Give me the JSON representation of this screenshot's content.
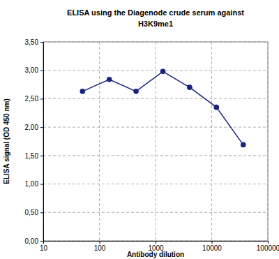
{
  "chart_data": {
    "type": "line",
    "title": "ELISA using the Diagenode crude serum against H3K9me1",
    "x_label": "Antibody dilution",
    "y_label": "ELISA signal (OD 450 nm)",
    "x": [
      50,
      150,
      450,
      1350,
      4050,
      12150,
      36450
    ],
    "values": [
      2.63,
      2.84,
      2.63,
      2.98,
      2.7,
      2.35,
      1.69
    ],
    "color": "#1a237e",
    "marker": "circle",
    "line_style": "solid",
    "log": "x",
    "grid": true,
    "xlim": [
      10,
      100000
    ],
    "xticks": [
      10,
      100,
      1000,
      10000,
      100000
    ],
    "ylim": [
      0,
      3.5
    ],
    "yticks": [
      {
        "value": 0,
        "label": "0,00"
      },
      {
        "value": 0.5,
        "label": "0,50"
      },
      {
        "value": 1,
        "label": "1,00"
      },
      {
        "value": 1.5,
        "label": "1,50"
      },
      {
        "value": 2,
        "label": "2,00"
      },
      {
        "value": 2.5,
        "label": "2,50"
      },
      {
        "value": 3,
        "label": "3,00"
      },
      {
        "value": 3.5,
        "label": "3,50"
      }
    ]
  }
}
